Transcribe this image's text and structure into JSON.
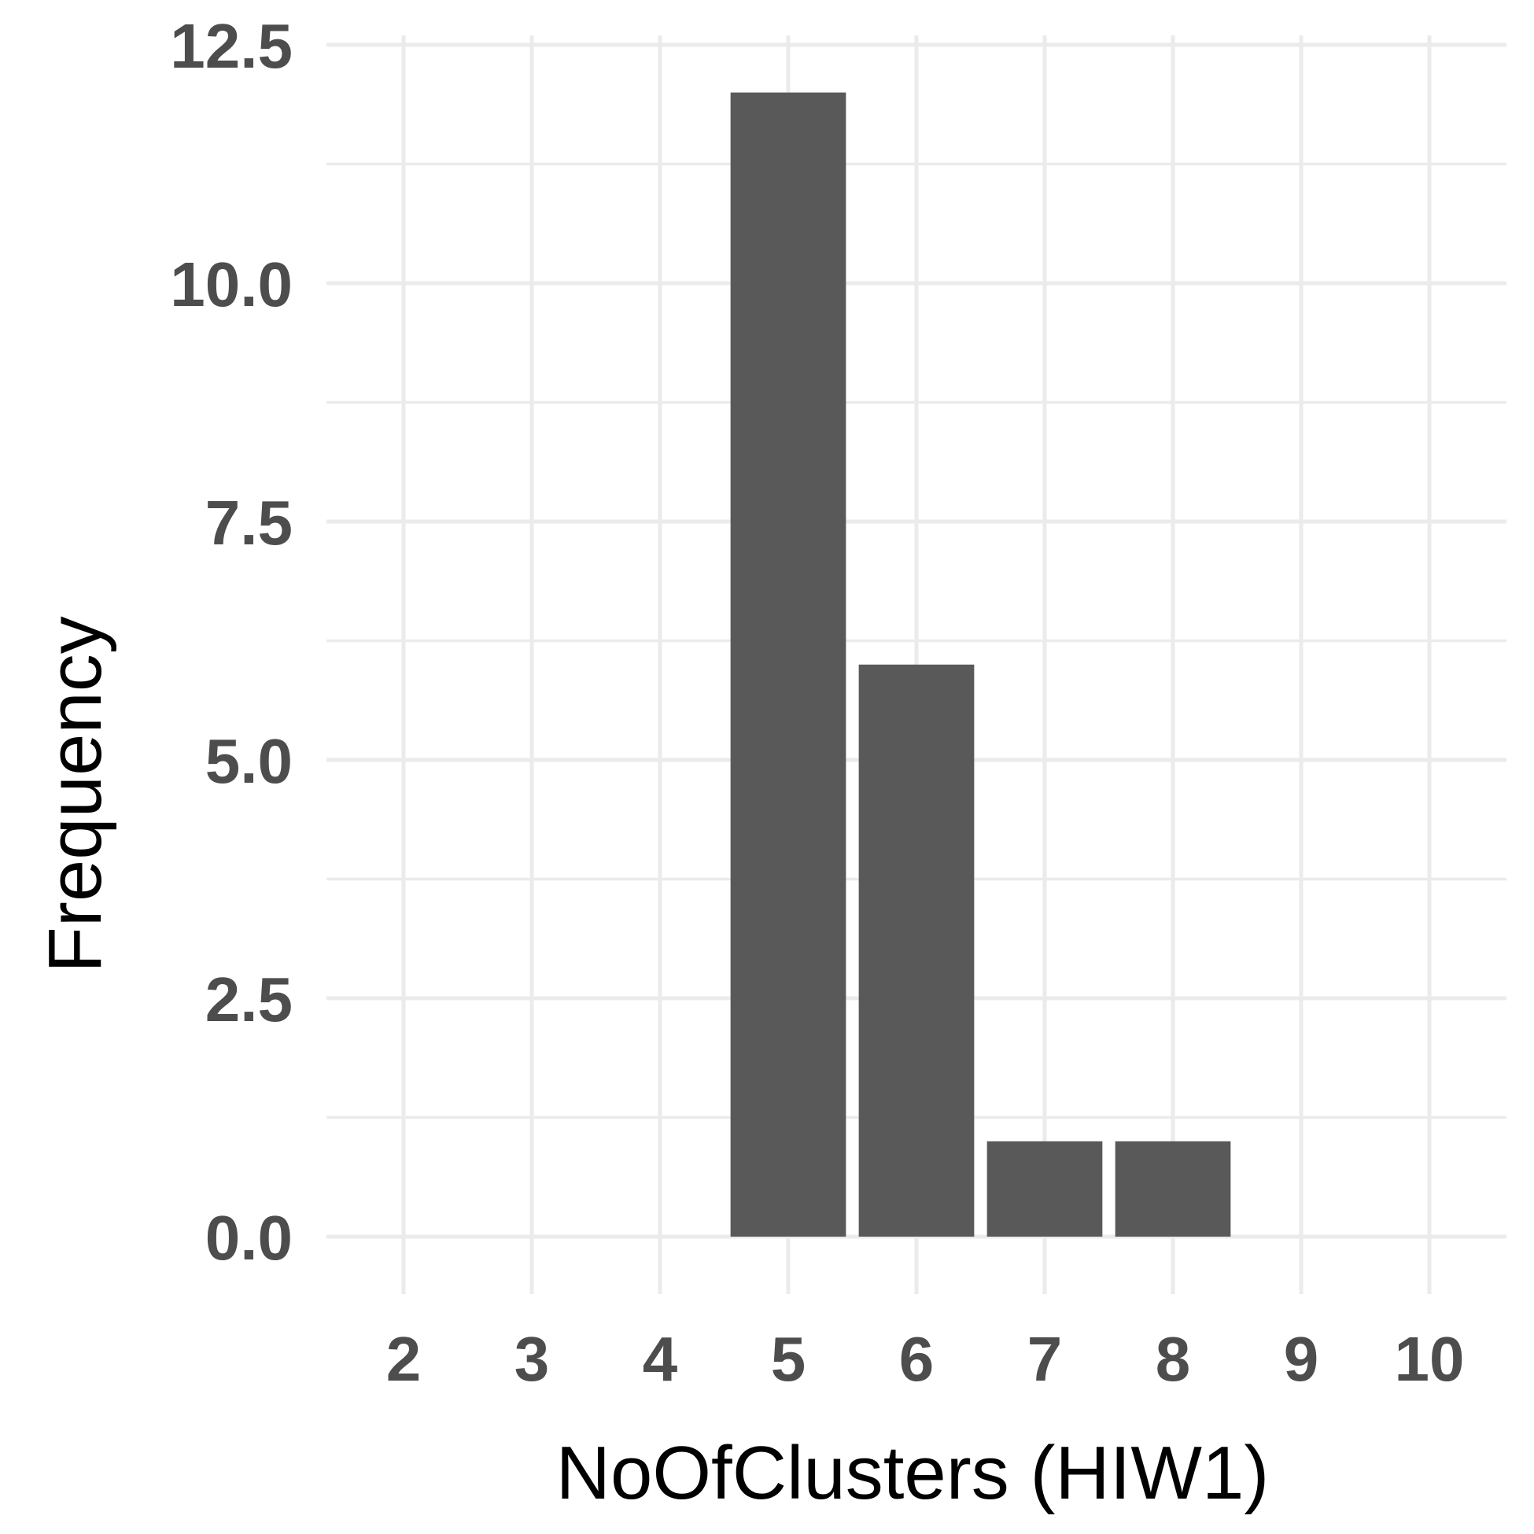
{
  "chart_data": {
    "type": "bar",
    "title": "",
    "xlabel": "NoOfClusters (HIW1)",
    "ylabel": "Frequency",
    "x_ticks": [
      "2",
      "3",
      "4",
      "5",
      "6",
      "7",
      "8",
      "9",
      "10"
    ],
    "y_ticks": [
      "0.0",
      "2.5",
      "5.0",
      "7.5",
      "10.0",
      "12.5"
    ],
    "categories": [
      5,
      6,
      7,
      8
    ],
    "values": [
      12,
      6,
      1,
      1
    ],
    "xlim": [
      2,
      10
    ],
    "ylim": [
      0,
      12.5
    ],
    "grid": true,
    "legend": "none",
    "colors": {
      "bar": "#595959",
      "grid": "#ebebeb",
      "tick_text": "#4d4d4d",
      "title_text": "#000000",
      "background": "#ffffff"
    }
  }
}
